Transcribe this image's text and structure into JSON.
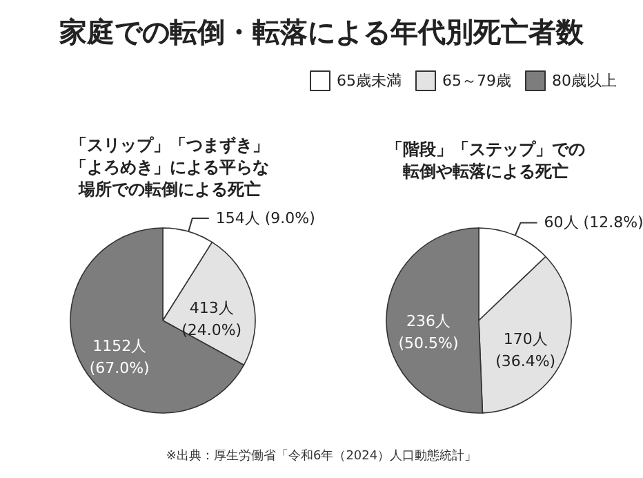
{
  "chart_data": {
    "type": "pie",
    "title": "家庭での転倒・転落による年代別死亡者数",
    "categories": [
      "65歳未満",
      "65～79歳",
      "80歳以上"
    ],
    "colors": [
      "#ffffff",
      "#e3e3e3",
      "#7d7d7d"
    ],
    "legend": "top right",
    "series": [
      {
        "name": "「スリップ」「つまずき」「よろめき」による平らな場所での転倒による死亡",
        "values": [
          154,
          413,
          1152
        ],
        "value_labels": [
          "154人 (9.0%)",
          "413人 (24.0%)",
          "1152人 (67.0%)"
        ]
      },
      {
        "name": "「階段」「ステップ」での転倒や転落による死亡",
        "values": [
          60,
          170,
          236
        ],
        "value_labels": [
          "60人 (12.8%)",
          "170人 (36.4%)",
          "236人 (50.5%)"
        ]
      }
    ],
    "annotations": [
      "※出典：厚生労働省「令和6年（2024）人口動態統計」"
    ]
  }
}
